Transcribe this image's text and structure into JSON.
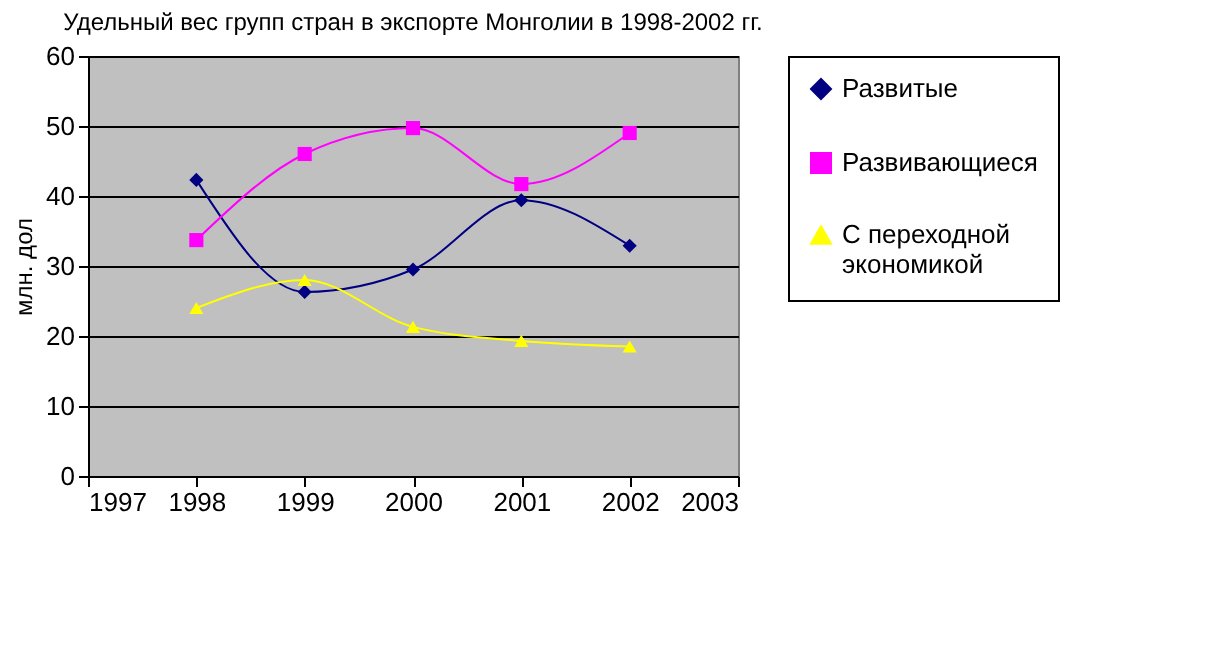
{
  "chart_data": {
    "type": "line",
    "title": "Удельный вес групп стран в экспорте Монголии в 1998-2002 гг.",
    "ylabel": "млн. дол",
    "x": [
      1998,
      1999,
      2000,
      2001,
      2002
    ],
    "series": [
      {
        "name": "Развитые",
        "color": "#000080",
        "marker": "diamond",
        "values": [
          42.3,
          26.3,
          29.5,
          39.4,
          32.9
        ]
      },
      {
        "name": "Развивающиеся",
        "color": "#ff00ff",
        "marker": "square",
        "values": [
          33.7,
          46,
          49.7,
          41.7,
          49
        ]
      },
      {
        "name": "С переходной экономикой",
        "color": "#ffff00",
        "marker": "triangle",
        "values": [
          24,
          28,
          21.3,
          19.3,
          18.5
        ]
      }
    ],
    "xlim": [
      1997,
      2003
    ],
    "xticks": [
      1997,
      1998,
      1999,
      2000,
      2001,
      2002,
      2003
    ],
    "ylim": [
      0,
      60
    ],
    "yticks": [
      0,
      10,
      20,
      30,
      40,
      50,
      60
    ],
    "grid": "y",
    "legend": "right"
  }
}
